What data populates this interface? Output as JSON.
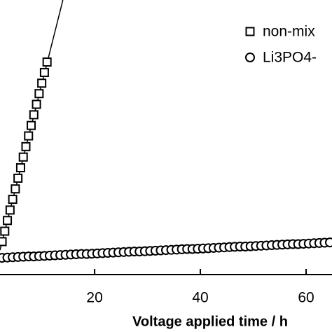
{
  "chart_data": {
    "type": "scatter",
    "x_label": "Voltage applied time / h",
    "xlim": [
      2.1,
      64.9
    ],
    "xticks": [
      20,
      40,
      60
    ],
    "ylim": [
      0,
      100
    ],
    "legend": "top-right",
    "series": [
      {
        "name": "non-mix",
        "marker": "square",
        "color": "#000000",
        "x": [
          2.5,
          3,
          3.5,
          4,
          4.5,
          5,
          5.5,
          6,
          6.5,
          7,
          7.5,
          8,
          8.5,
          9,
          9.5,
          10,
          10.5,
          11
        ],
        "values": [
          12,
          15.8,
          19.7,
          23.5,
          27.4,
          31.2,
          35.1,
          38.9,
          42.8,
          46.6,
          50.5,
          54.3,
          58.2,
          62,
          65.9,
          69.7,
          73.6,
          77.4
        ],
        "fit_x": [
          2.1,
          14
        ],
        "fit_values": [
          8.9,
          100
        ]
      },
      {
        "name": "Li3PO4-",
        "marker": "circle",
        "color": "#000000",
        "x": [
          2.5,
          3.5,
          4.5,
          5.5,
          6.5,
          7.5,
          8.5,
          9.5,
          10.5,
          11.5,
          12.5,
          13.5,
          14.5,
          15.5,
          16.5,
          17.5,
          18.5,
          19.5,
          20.5,
          21.5,
          22.5,
          23.5,
          24.5,
          25.5,
          26.5,
          27.5,
          28.5,
          29.5,
          30.5,
          31.5,
          32.5,
          33.5,
          34.5,
          35.5,
          36.5,
          37.5,
          38.5,
          39.5,
          40.5,
          41.5,
          42.5,
          43.5,
          44.5,
          45.5,
          46.5,
          47.5,
          48.5,
          49.5,
          50.5,
          51.5,
          52.5,
          53.5,
          54.5,
          55.5,
          56.5,
          57.5,
          58.5,
          59.5,
          60.5,
          61.5,
          62.5,
          63.5,
          64.5
        ],
        "values": [
          6.1,
          6.2,
          6.3,
          6.4,
          6.5,
          6.6,
          6.6,
          6.7,
          6.8,
          6.9,
          7.0,
          7.1,
          7.2,
          7.3,
          7.4,
          7.5,
          7.5,
          7.6,
          7.7,
          7.8,
          7.9,
          8.0,
          8.1,
          8.2,
          8.3,
          8.4,
          8.4,
          8.5,
          8.6,
          8.7,
          8.8,
          8.9,
          9.0,
          9.1,
          9.2,
          9.3,
          9.3,
          9.4,
          9.5,
          9.6,
          9.7,
          9.8,
          9.9,
          10.0,
          10.1,
          10.2,
          10.2,
          10.3,
          10.4,
          10.5,
          10.6,
          10.7,
          10.8,
          10.9,
          11.0,
          11.1,
          11.1,
          11.2,
          11.3,
          11.4,
          11.5,
          11.6,
          11.7
        ],
        "fit_x": [
          2.1,
          64.9
        ],
        "fit_values": [
          6.1,
          11.7
        ]
      }
    ]
  }
}
